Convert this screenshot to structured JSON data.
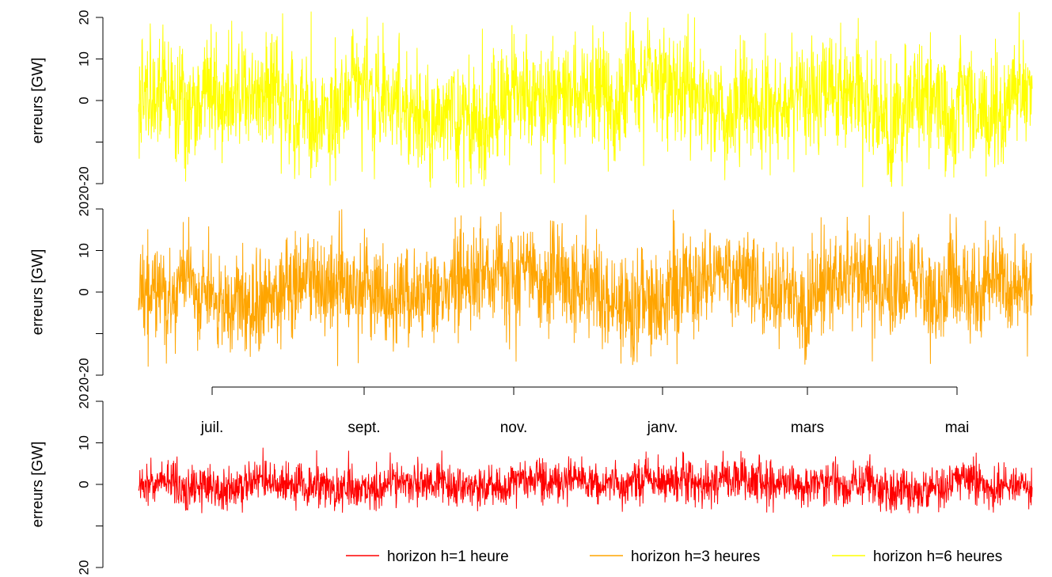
{
  "chart_data": {
    "type": "line",
    "panels": [
      {
        "series": "horizon h=6 heures",
        "color": "#FFFF00",
        "ylabel": "erreurs [GW]",
        "yticks": [
          "20",
          "10",
          "0",
          "",
          "20-20"
        ],
        "ylim": [
          -20,
          20
        ],
        "approx_range": [
          -21,
          22
        ]
      },
      {
        "series": "horizon h=3 heures",
        "color": "#FFA500",
        "ylabel": "erreurs [GW]",
        "yticks": [
          "20",
          "10",
          "0",
          "",
          "20-20"
        ],
        "ylim": [
          -20,
          20
        ],
        "approx_range": [
          -18,
          20
        ]
      },
      {
        "series": "horizon h=1 heure",
        "color": "#FF0000",
        "ylabel": "erreurs [GW]",
        "yticks": [
          "20",
          "10",
          "0",
          "",
          "20"
        ],
        "ylim": [
          -20,
          20
        ],
        "approx_range": [
          -7,
          9
        ]
      }
    ],
    "x_axis": {
      "tick_labels": [
        "juil.",
        "sept.",
        "nov.",
        "janv.",
        "mars",
        "mai"
      ]
    },
    "legend": {
      "position": "bottom-right",
      "entries": [
        {
          "label": "horizon h=1 heure",
          "color": "#FF0000"
        },
        {
          "label": "horizon h=3 heures",
          "color": "#FFA500"
        },
        {
          "label": "horizon h=6 heures",
          "color": "#FFFF00"
        }
      ]
    }
  }
}
